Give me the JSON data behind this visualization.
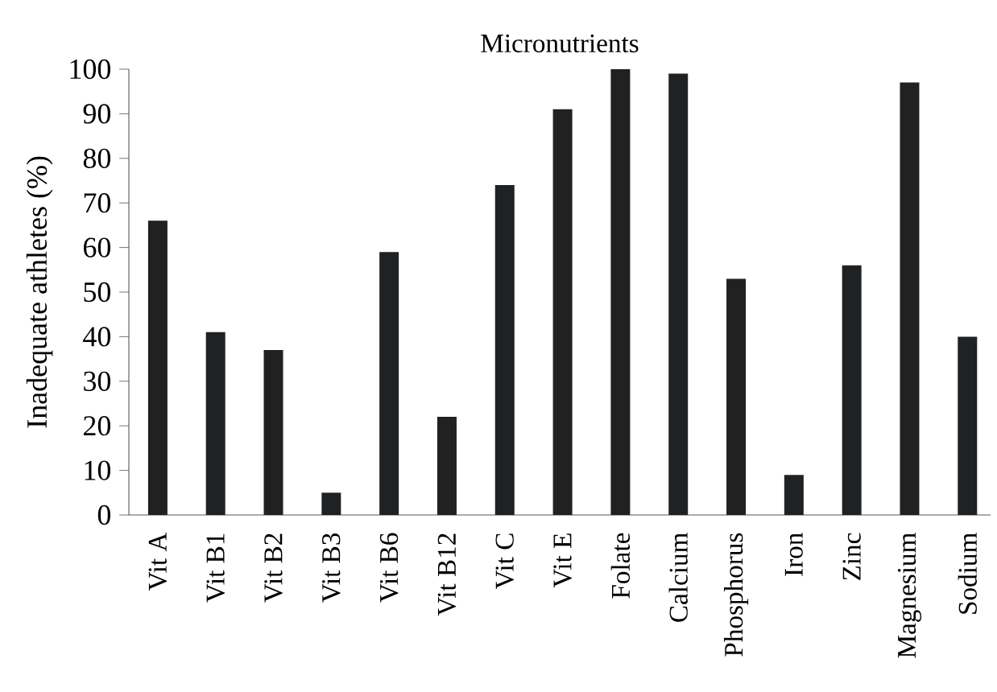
{
  "chart_data": {
    "type": "bar",
    "title": "Micronutrients",
    "ylabel": "Inadequate athletes (%)",
    "categories": [
      "Vit A",
      "Vit B1",
      "Vit B2",
      "Vit B3",
      "Vit B6",
      "Vit B12",
      "Vit C",
      "Vit E",
      "Folate",
      "Calcium",
      "Phosphorus",
      "Iron",
      "Zinc",
      "Magnesium",
      "Sodium"
    ],
    "values": [
      66,
      41,
      37,
      5,
      59,
      22,
      74,
      91,
      100,
      99,
      53,
      9,
      56,
      97,
      40
    ],
    "color": "#202122",
    "ylim": [
      0,
      100
    ],
    "yticks": [
      0,
      10,
      20,
      30,
      40,
      50,
      60,
      70,
      80,
      90,
      100
    ],
    "grid": false
  }
}
